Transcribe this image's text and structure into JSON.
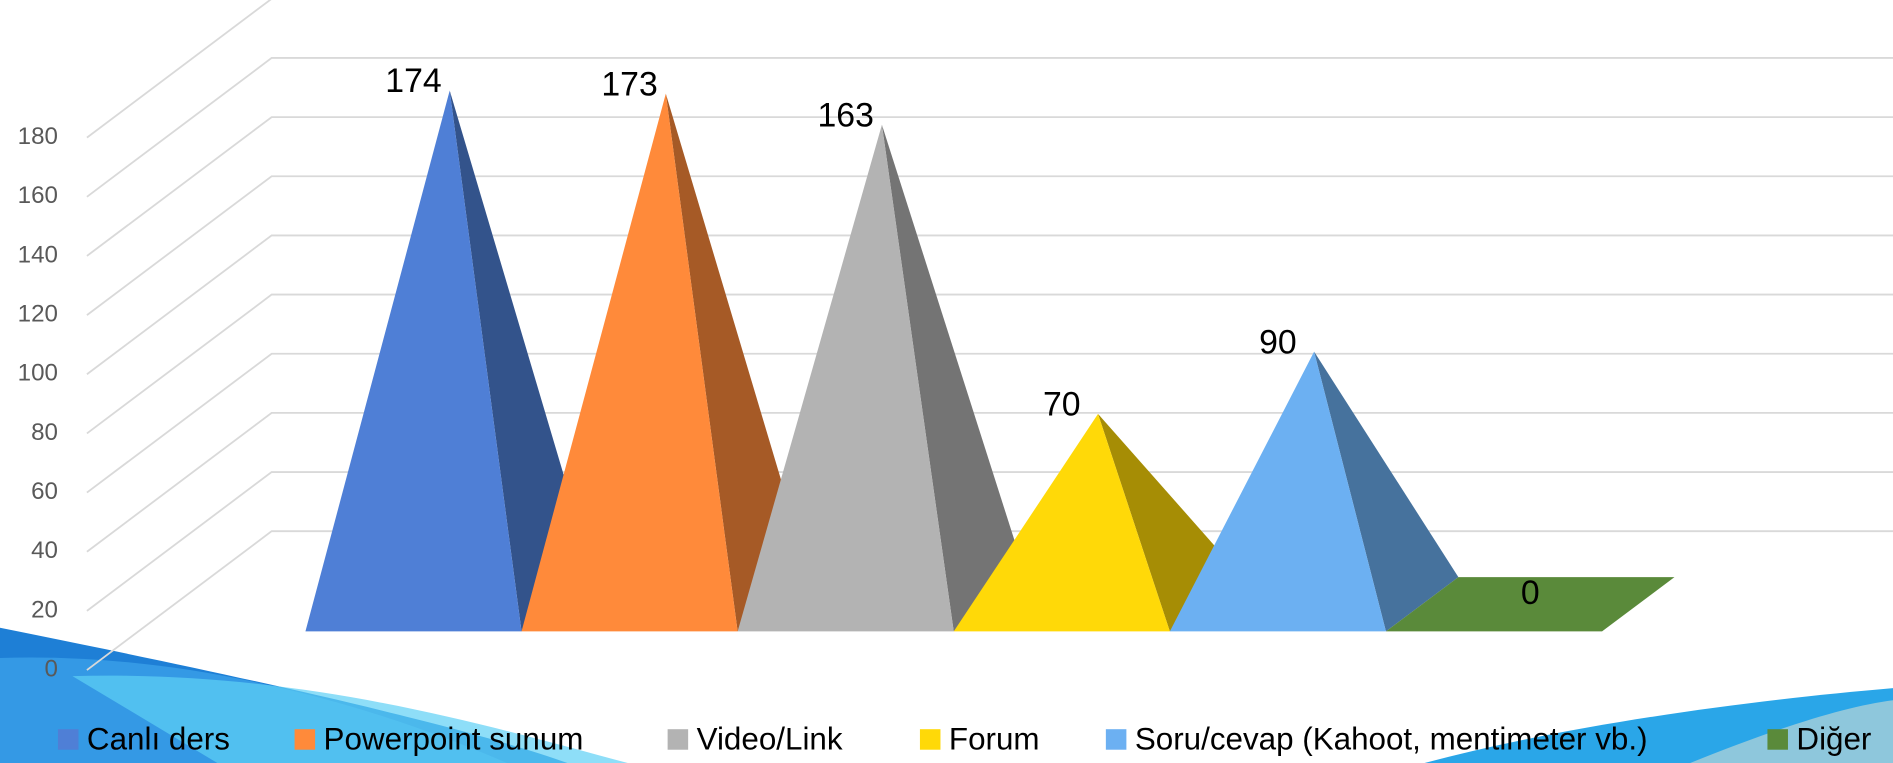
{
  "chart_data": {
    "type": "pyramid3d",
    "series": [
      {
        "name": "Canlı ders",
        "color": "#4f7fd6",
        "values": [
          174
        ]
      },
      {
        "name": "Powerpoint sunum",
        "color": "#ff8a3a",
        "values": [
          173
        ]
      },
      {
        "name": "Video/Link",
        "color": "#b3b3b3",
        "values": [
          163
        ]
      },
      {
        "name": "Forum",
        "color": "#ffd908",
        "values": [
          70
        ]
      },
      {
        "name": "Soru/cevap (Kahoot, mentimeter vb.)",
        "color": "#6cb0f2",
        "values": [
          90
        ]
      },
      {
        "name": "Diğer",
        "color": "#5a8a3a",
        "values": [
          0
        ]
      }
    ],
    "ylim": [
      0,
      180
    ],
    "yticks": [
      0,
      20,
      40,
      60,
      80,
      100,
      120,
      140,
      160,
      180
    ],
    "grid": true,
    "legend": "bottom"
  }
}
